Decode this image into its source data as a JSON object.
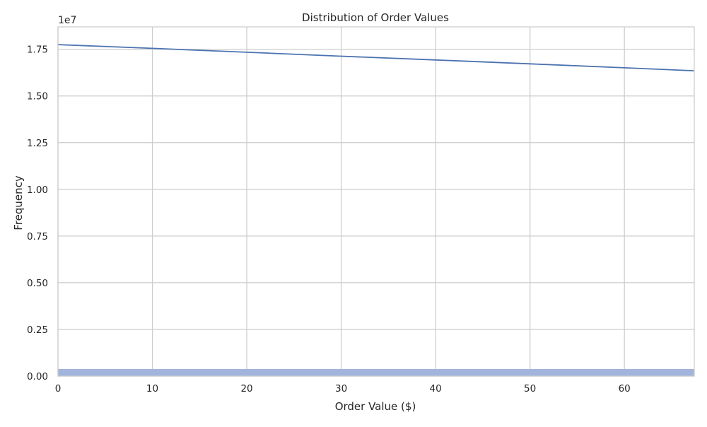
{
  "chart_data": {
    "type": "line",
    "title": "Distribution of Order Values",
    "xlabel": "Order Value ($)",
    "ylabel": "Frequency",
    "y_offset_label": "1e7",
    "xlim": [
      0,
      67.4
    ],
    "ylim": [
      0,
      18700000
    ],
    "x_ticks": [
      0,
      10,
      20,
      30,
      40,
      50,
      60
    ],
    "x_tick_labels": [
      "0",
      "10",
      "20",
      "30",
      "40",
      "50",
      "60"
    ],
    "y_ticks": [
      0,
      2500000,
      5000000,
      7500000,
      10000000,
      12500000,
      15000000,
      17500000
    ],
    "y_tick_labels": [
      "0.00",
      "0.25",
      "0.50",
      "0.75",
      "1.00",
      "1.25",
      "1.50",
      "1.75"
    ],
    "grid": true,
    "series": [
      {
        "kind": "line",
        "color": "#4c72b0",
        "x": [
          0,
          10,
          20,
          30,
          40,
          50,
          60,
          67.4
        ],
        "y": [
          17750000,
          17550000,
          17340000,
          17130000,
          16930000,
          16720000,
          16510000,
          16350000
        ]
      },
      {
        "kind": "bars",
        "color": "#a1b4dc",
        "x_start": 0,
        "x_end": 67.4,
        "value": 380000
      }
    ]
  }
}
